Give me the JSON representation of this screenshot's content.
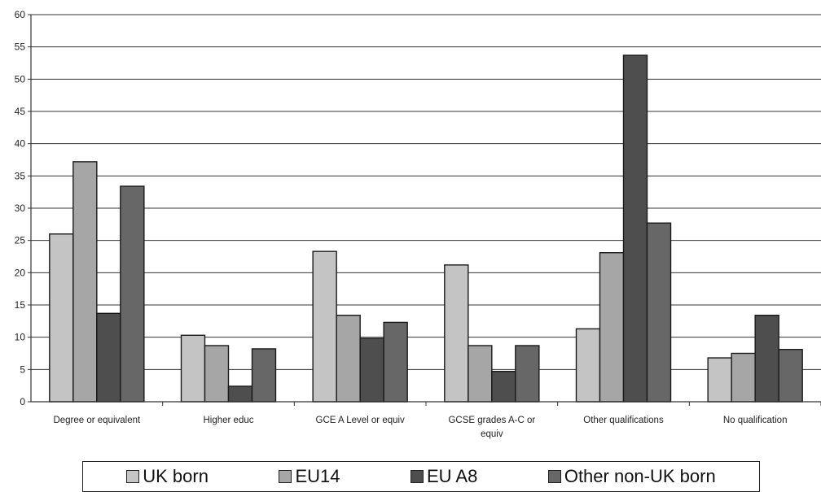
{
  "chart_data": {
    "type": "bar",
    "categories": [
      "Degree or equivalent",
      "Higher educ",
      "GCE A Level or equiv",
      "GCSE grades A-C or equiv",
      "Other qualifications",
      "No qualification"
    ],
    "category_lines": [
      [
        "Degree or equivalent"
      ],
      [
        "Higher educ"
      ],
      [
        "GCE A Level or equiv"
      ],
      [
        "GCSE grades A-C or",
        "equiv"
      ],
      [
        "Other qualifications"
      ],
      [
        "No qualification"
      ]
    ],
    "series": [
      {
        "name": "UK born",
        "color": "#c4c4c4",
        "values": [
          26,
          10.3,
          23.3,
          21.2,
          11.3,
          6.8
        ]
      },
      {
        "name": "EU14",
        "color": "#a6a6a6",
        "values": [
          37.2,
          8.7,
          13.4,
          8.7,
          23.1,
          7.5
        ]
      },
      {
        "name": "EU A8",
        "color": "#4e4e4e",
        "values": [
          13.7,
          2.4,
          9.8,
          4.7,
          53.7,
          13.4
        ]
      },
      {
        "name": "Other non-UK born",
        "color": "#676767",
        "values": [
          33.4,
          8.2,
          12.3,
          8.7,
          27.7,
          8.1
        ]
      }
    ],
    "ylim": [
      0,
      60
    ],
    "yticks": [
      "0",
      "5",
      "10",
      "15",
      "20",
      "25",
      "30",
      "35",
      "40",
      "45",
      "50",
      "55",
      "60"
    ],
    "grid": true,
    "legend": "bottom",
    "title": "",
    "xlabel": "",
    "ylabel": ""
  }
}
